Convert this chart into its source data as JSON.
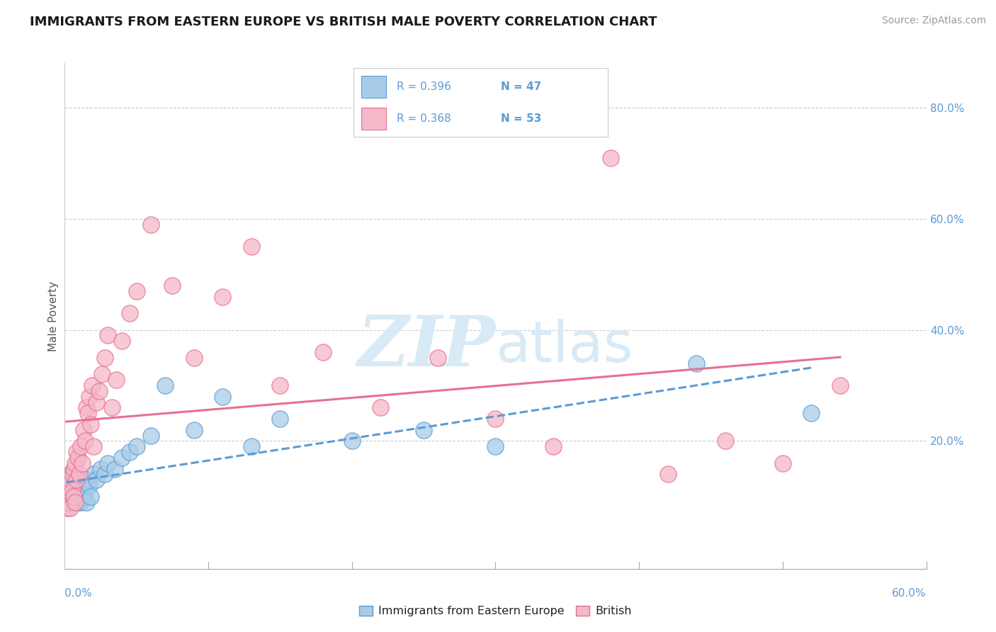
{
  "title": "IMMIGRANTS FROM EASTERN EUROPE VS BRITISH MALE POVERTY CORRELATION CHART",
  "source": "Source: ZipAtlas.com",
  "ylabel": "Male Poverty",
  "ytick_values": [
    0.0,
    0.2,
    0.4,
    0.6,
    0.8
  ],
  "ytick_labels": [
    "",
    "20.0%",
    "40.0%",
    "60.0%",
    "80.0%"
  ],
  "xlim": [
    0.0,
    0.6
  ],
  "ylim": [
    -0.03,
    0.88
  ],
  "color_blue": "#a8cce8",
  "color_blue_edge": "#5b9bd5",
  "color_pink": "#f4b8c8",
  "color_pink_edge": "#e87090",
  "color_blue_line": "#5b9bd5",
  "color_pink_line": "#e87090",
  "color_text_blue": "#5b9bd5",
  "watermark_color": "#d8eaf6",
  "legend_label_blue": "Immigrants from Eastern Europe",
  "legend_label_pink": "British",
  "blue_x": [
    0.001,
    0.002,
    0.002,
    0.003,
    0.003,
    0.004,
    0.004,
    0.005,
    0.005,
    0.006,
    0.006,
    0.007,
    0.007,
    0.008,
    0.008,
    0.009,
    0.009,
    0.01,
    0.01,
    0.011,
    0.012,
    0.013,
    0.014,
    0.015,
    0.016,
    0.017,
    0.018,
    0.02,
    0.022,
    0.025,
    0.028,
    0.03,
    0.035,
    0.04,
    0.045,
    0.05,
    0.06,
    0.07,
    0.09,
    0.11,
    0.13,
    0.15,
    0.2,
    0.25,
    0.3,
    0.44,
    0.52
  ],
  "blue_y": [
    0.1,
    0.09,
    0.12,
    0.1,
    0.13,
    0.11,
    0.14,
    0.09,
    0.13,
    0.1,
    0.14,
    0.09,
    0.11,
    0.1,
    0.12,
    0.09,
    0.11,
    0.1,
    0.13,
    0.09,
    0.12,
    0.1,
    0.11,
    0.09,
    0.13,
    0.12,
    0.1,
    0.14,
    0.13,
    0.15,
    0.14,
    0.16,
    0.15,
    0.17,
    0.18,
    0.19,
    0.21,
    0.3,
    0.22,
    0.28,
    0.19,
    0.24,
    0.2,
    0.22,
    0.19,
    0.34,
    0.25
  ],
  "pink_x": [
    0.001,
    0.002,
    0.002,
    0.003,
    0.003,
    0.004,
    0.004,
    0.005,
    0.005,
    0.006,
    0.006,
    0.007,
    0.007,
    0.008,
    0.008,
    0.009,
    0.01,
    0.011,
    0.012,
    0.013,
    0.014,
    0.015,
    0.016,
    0.017,
    0.018,
    0.019,
    0.02,
    0.022,
    0.024,
    0.026,
    0.028,
    0.03,
    0.033,
    0.036,
    0.04,
    0.045,
    0.05,
    0.06,
    0.075,
    0.09,
    0.11,
    0.13,
    0.15,
    0.18,
    0.22,
    0.26,
    0.3,
    0.34,
    0.38,
    0.42,
    0.46,
    0.5,
    0.54
  ],
  "pink_y": [
    0.1,
    0.08,
    0.12,
    0.09,
    0.11,
    0.08,
    0.13,
    0.11,
    0.14,
    0.1,
    0.15,
    0.09,
    0.16,
    0.18,
    0.13,
    0.17,
    0.14,
    0.19,
    0.16,
    0.22,
    0.2,
    0.26,
    0.25,
    0.28,
    0.23,
    0.3,
    0.19,
    0.27,
    0.29,
    0.32,
    0.35,
    0.39,
    0.26,
    0.31,
    0.38,
    0.43,
    0.47,
    0.59,
    0.48,
    0.35,
    0.46,
    0.55,
    0.3,
    0.36,
    0.26,
    0.35,
    0.24,
    0.19,
    0.71,
    0.14,
    0.2,
    0.16,
    0.3
  ]
}
